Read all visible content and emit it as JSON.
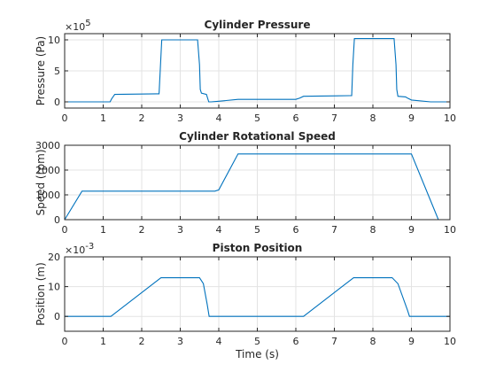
{
  "figure": {
    "background": "#ffffff",
    "line_color": "#0072bd"
  },
  "chart_data": [
    {
      "type": "line",
      "title": "Cylinder Pressure",
      "xlabel": "",
      "ylabel": "Pressure (Pa)",
      "xlim": [
        0,
        10
      ],
      "ylim": [
        -100000,
        1100000
      ],
      "xticks": [
        0,
        1,
        2,
        3,
        4,
        5,
        6,
        7,
        8,
        9,
        10
      ],
      "yticks": [
        0,
        500000,
        1000000
      ],
      "ytick_labels": [
        "0",
        "5",
        "10"
      ],
      "y_multiplier_base": "×10",
      "y_multiplier_exp": "5",
      "grid": true,
      "series": [
        {
          "x": [
            0,
            1.18,
            1.22,
            1.3,
            2.38,
            2.45,
            2.48,
            2.52,
            3.45,
            3.5,
            3.52,
            3.55,
            3.68,
            3.74,
            3.8,
            4.0,
            4.5,
            6.0,
            6.1,
            6.2,
            7.4,
            7.45,
            7.48,
            7.52,
            8.55,
            8.6,
            8.62,
            8.65,
            8.85,
            8.9,
            9.0,
            9.5,
            10
          ],
          "y": [
            0,
            0,
            50000,
            120000,
            130000,
            130000,
            500000,
            1000000,
            1000000,
            600000,
            200000,
            140000,
            120000,
            0,
            0,
            10000,
            40000,
            40000,
            60000,
            90000,
            100000,
            100000,
            600000,
            1020000,
            1020000,
            600000,
            200000,
            90000,
            80000,
            60000,
            30000,
            0,
            0
          ]
        }
      ]
    },
    {
      "type": "line",
      "title": "Cylinder Rotational Speed",
      "xlabel": "",
      "ylabel": "Speed (rpm)",
      "xlim": [
        0,
        10
      ],
      "ylim": [
        0,
        3000
      ],
      "xticks": [
        0,
        1,
        2,
        3,
        4,
        5,
        6,
        7,
        8,
        9,
        10
      ],
      "yticks": [
        0,
        1000,
        2000,
        3000
      ],
      "ytick_labels": [
        "0",
        "1000",
        "2000",
        "3000"
      ],
      "grid": true,
      "series": [
        {
          "x": [
            0,
            0.45,
            0.5,
            3.9,
            4.0,
            4.5,
            8.95,
            9.0,
            9.7
          ],
          "y": [
            0,
            1150,
            1150,
            1150,
            1200,
            2650,
            2650,
            2650,
            0
          ]
        }
      ]
    },
    {
      "type": "line",
      "title": "Piston Position",
      "xlabel": "Time (s)",
      "ylabel": "Position (m)",
      "xlim": [
        0,
        10
      ],
      "ylim": [
        -0.005,
        0.02
      ],
      "xticks": [
        0,
        1,
        2,
        3,
        4,
        5,
        6,
        7,
        8,
        9,
        10
      ],
      "yticks": [
        0,
        0.01,
        0.02
      ],
      "ytick_labels": [
        "0",
        "10",
        "20"
      ],
      "y_multiplier_base": "×10",
      "y_multiplier_exp": "-3",
      "grid": true,
      "series": [
        {
          "x": [
            0,
            1.2,
            2.5,
            3.5,
            3.6,
            3.7,
            3.75,
            6.2,
            7.5,
            8.5,
            8.65,
            8.9,
            8.95,
            10
          ],
          "y": [
            0,
            0,
            0.013,
            0.013,
            0.011,
            0.004,
            0,
            0,
            0.013,
            0.013,
            0.011,
            0.002,
            0,
            0
          ]
        }
      ]
    }
  ]
}
